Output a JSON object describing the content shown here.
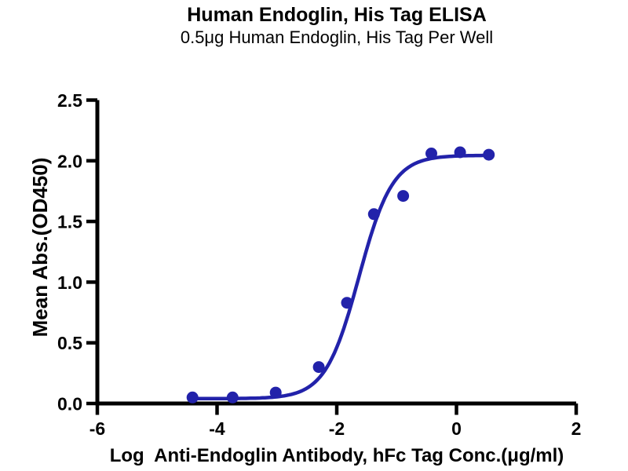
{
  "figure": {
    "background": "#ffffff",
    "axis_color": "#000000",
    "accent_blue": "#2222aa"
  },
  "chart_data": {
    "type": "scatter",
    "title": "Human Endoglin, His Tag ELISA",
    "subtitle": "0.5μg Human Endoglin, His Tag Per Well",
    "xlabel": "Log  Anti-Endoglin Antibody, hFc Tag Conc.(μg/ml)",
    "ylabel": "Mean Abs.(OD450)",
    "xlim": [
      -6,
      2
    ],
    "ylim": [
      0,
      2.5
    ],
    "grid": false,
    "legend": "none",
    "x_ticks": [
      {
        "value": -6,
        "label": "-6"
      },
      {
        "value": -4,
        "label": "-4"
      },
      {
        "value": -2,
        "label": "-2"
      },
      {
        "value": 0,
        "label": "0"
      },
      {
        "value": 2,
        "label": "2"
      }
    ],
    "y_ticks": [
      {
        "value": 0,
        "label": "0.0"
      },
      {
        "value": 0.5,
        "label": "0.5"
      },
      {
        "value": 1,
        "label": "1.0"
      },
      {
        "value": 1.5,
        "label": "1.5"
      },
      {
        "value": 2,
        "label": "2.0"
      },
      {
        "value": 2.5,
        "label": "2.5"
      }
    ],
    "series": [
      {
        "marker": "circle",
        "marker_radius": 7.5,
        "color": "#2222aa",
        "points": [
          [
            -4.41,
            0.05
          ],
          [
            -3.74,
            0.05
          ],
          [
            -3.02,
            0.09
          ],
          [
            -2.3,
            0.3
          ],
          [
            -1.83,
            0.83
          ],
          [
            -1.38,
            1.56
          ],
          [
            -0.89,
            1.71
          ],
          [
            -0.42,
            2.06
          ],
          [
            0.06,
            2.07
          ],
          [
            0.54,
            2.05
          ]
        ]
      }
    ],
    "fit_curve": {
      "model": "4PL sigmoid",
      "bottom": 0.04,
      "top": 2.045,
      "log_ec50": -1.63,
      "hill_slope": 1.55,
      "x_start": -4.44,
      "x_end": 0.54,
      "color": "#2222aa",
      "stroke_width": 4.5
    }
  }
}
